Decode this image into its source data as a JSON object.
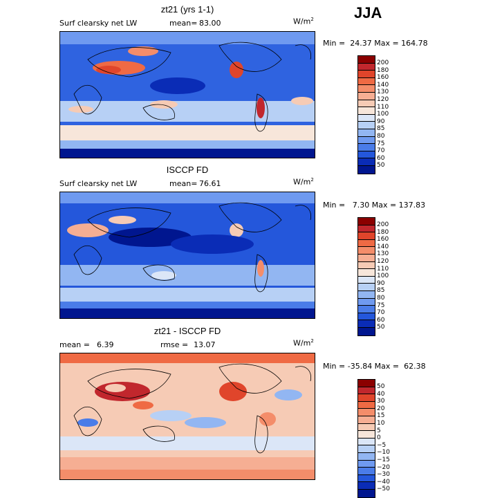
{
  "season": "JJA",
  "units": "W/m",
  "units_exp": "2",
  "panels": [
    {
      "title": "zt21 (yrs 1-1)",
      "variable": "Surf clearsky net LW",
      "mean_label": "mean=",
      "mean_value": "83.00",
      "minmax": "Min =  24.37 Max = 164.78",
      "colorbar": {
        "labels": [
          "200",
          "180",
          "160",
          "140",
          "130",
          "120",
          "110",
          "100",
          "90",
          "85",
          "80",
          "75",
          "70",
          "60",
          "50"
        ],
        "colors": [
          "#8b0000",
          "#c1272d",
          "#e0452b",
          "#ef6a44",
          "#f48d6a",
          "#f6ae93",
          "#f6cbb5",
          "#f7e6da",
          "#dbe6f7",
          "#b7d0f5",
          "#92b6f2",
          "#6f9af0",
          "#4a7ce8",
          "#2457db",
          "#0a2cb6",
          "#00168f"
        ]
      }
    },
    {
      "title": "ISCCP FD",
      "variable": "Surf clearsky net LW",
      "mean_label": "mean=",
      "mean_value": "76.61",
      "minmax": "Min =   7.30 Max = 137.83",
      "colorbar": {
        "labels": [
          "200",
          "180",
          "160",
          "140",
          "130",
          "120",
          "110",
          "100",
          "90",
          "85",
          "80",
          "75",
          "70",
          "60",
          "50"
        ],
        "colors": [
          "#8b0000",
          "#c1272d",
          "#e0452b",
          "#ef6a44",
          "#f48d6a",
          "#f6ae93",
          "#f6cbb5",
          "#f7e6da",
          "#dbe6f7",
          "#b7d0f5",
          "#92b6f2",
          "#6f9af0",
          "#4a7ce8",
          "#2457db",
          "#0a2cb6",
          "#00168f"
        ]
      }
    },
    {
      "title": "zt21 - ISCCP FD",
      "mean_label": "mean =",
      "mean_value": "6.39",
      "rmse_label": "rmse =",
      "rmse_value": "13.07",
      "minmax": "Min = -35.84 Max =  62.38",
      "colorbar": {
        "labels": [
          "50",
          "40",
          "30",
          "20",
          "15",
          "10",
          "5",
          "0",
          "−5",
          "−10",
          "−15",
          "−20",
          "−30",
          "−40",
          "−50"
        ],
        "colors": [
          "#8b0000",
          "#c1272d",
          "#e0452b",
          "#ef6a44",
          "#f48d6a",
          "#f6ae93",
          "#f6cbb5",
          "#f7e6da",
          "#dbe6f7",
          "#b7d0f5",
          "#92b6f2",
          "#6f9af0",
          "#4a7ce8",
          "#2457db",
          "#0a2cb6",
          "#00168f"
        ]
      }
    }
  ]
}
